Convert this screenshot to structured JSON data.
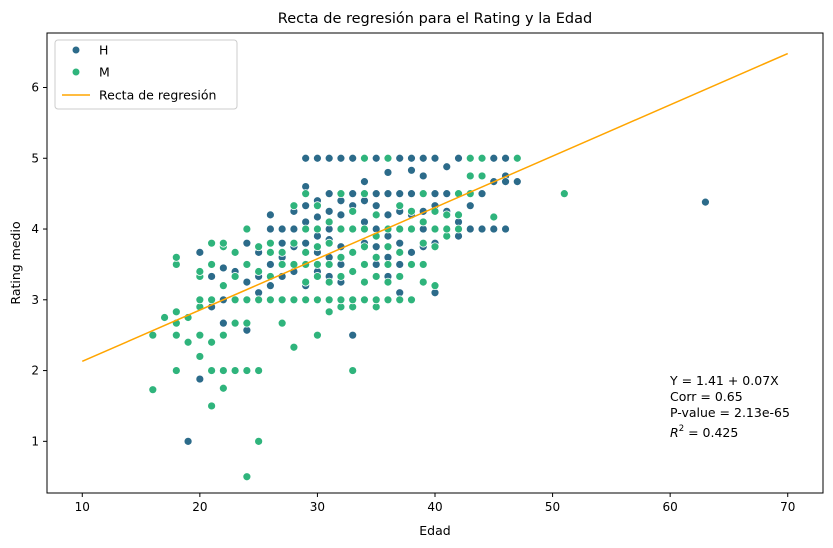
{
  "chart_data": {
    "type": "scatter",
    "title": "Recta de regresión para el Rating y la Edad",
    "xlabel": "Edad",
    "ylabel": "Rating medio",
    "xlim": [
      7,
      73
    ],
    "ylim": [
      0.27,
      6.77
    ],
    "xticks": [
      10,
      20,
      30,
      40,
      50,
      60,
      70
    ],
    "yticks": [
      1,
      2,
      3,
      4,
      5,
      6
    ],
    "grid": false,
    "legend_position": "top-left",
    "series": [
      {
        "name": "H",
        "color": "#2c6b8a",
        "points": [
          [
            19,
            1.0
          ],
          [
            20,
            1.88
          ],
          [
            20,
            3.67
          ],
          [
            21,
            2.9
          ],
          [
            21,
            3.33
          ],
          [
            21,
            3.5
          ],
          [
            22,
            3.0
          ],
          [
            22,
            3.45
          ],
          [
            22,
            2.67
          ],
          [
            23,
            3.0
          ],
          [
            23,
            3.4
          ],
          [
            23,
            3.67
          ],
          [
            24,
            3.25
          ],
          [
            24,
            3.5
          ],
          [
            24,
            3.8
          ],
          [
            24,
            2.0
          ],
          [
            24,
            2.57
          ],
          [
            25,
            3.33
          ],
          [
            25,
            3.67
          ],
          [
            25,
            3.1
          ],
          [
            26,
            3.5
          ],
          [
            26,
            4.0
          ],
          [
            26,
            4.2
          ],
          [
            26,
            3.2
          ],
          [
            27,
            3.33
          ],
          [
            27,
            3.6
          ],
          [
            27,
            3.8
          ],
          [
            27,
            4.0
          ],
          [
            28,
            3.0
          ],
          [
            28,
            3.4
          ],
          [
            28,
            3.75
          ],
          [
            28,
            4.0
          ],
          [
            28,
            4.25
          ],
          [
            29,
            3.5
          ],
          [
            29,
            3.8
          ],
          [
            29,
            4.1
          ],
          [
            29,
            4.33
          ],
          [
            29,
            4.6
          ],
          [
            29,
            5.0
          ],
          [
            29,
            3.2
          ],
          [
            30,
            3.0
          ],
          [
            30,
            3.4
          ],
          [
            30,
            3.67
          ],
          [
            30,
            3.9
          ],
          [
            30,
            4.17
          ],
          [
            30,
            4.4
          ],
          [
            30,
            5.0
          ],
          [
            31,
            3.33
          ],
          [
            31,
            3.6
          ],
          [
            31,
            3.85
          ],
          [
            31,
            4.0
          ],
          [
            31,
            4.25
          ],
          [
            31,
            4.5
          ],
          [
            31,
            5.0
          ],
          [
            32,
            3.5
          ],
          [
            32,
            3.75
          ],
          [
            32,
            4.0
          ],
          [
            32,
            4.2
          ],
          [
            32,
            4.4
          ],
          [
            32,
            5.0
          ],
          [
            32,
            3.25
          ],
          [
            33,
            3.4
          ],
          [
            33,
            3.67
          ],
          [
            33,
            4.0
          ],
          [
            33,
            4.33
          ],
          [
            33,
            4.5
          ],
          [
            33,
            5.0
          ],
          [
            33,
            2.5
          ],
          [
            34,
            3.5
          ],
          [
            34,
            3.8
          ],
          [
            34,
            4.1
          ],
          [
            34,
            4.4
          ],
          [
            34,
            4.67
          ],
          [
            35,
            3.5
          ],
          [
            35,
            3.75
          ],
          [
            35,
            4.0
          ],
          [
            35,
            4.33
          ],
          [
            35,
            4.5
          ],
          [
            35,
            5.0
          ],
          [
            36,
            3.6
          ],
          [
            36,
            3.9
          ],
          [
            36,
            4.2
          ],
          [
            36,
            4.5
          ],
          [
            36,
            4.8
          ],
          [
            36,
            3.33
          ],
          [
            37,
            3.5
          ],
          [
            37,
            3.8
          ],
          [
            37,
            4.0
          ],
          [
            37,
            4.25
          ],
          [
            37,
            4.5
          ],
          [
            37,
            5.0
          ],
          [
            37,
            3.1
          ],
          [
            38,
            3.67
          ],
          [
            38,
            4.0
          ],
          [
            38,
            4.2
          ],
          [
            38,
            4.5
          ],
          [
            38,
            4.83
          ],
          [
            38,
            5.0
          ],
          [
            39,
            3.75
          ],
          [
            39,
            4.0
          ],
          [
            39,
            4.25
          ],
          [
            39,
            4.5
          ],
          [
            39,
            4.75
          ],
          [
            39,
            5.0
          ],
          [
            40,
            3.1
          ],
          [
            40,
            3.8
          ],
          [
            40,
            4.0
          ],
          [
            40,
            4.33
          ],
          [
            40,
            4.5
          ],
          [
            40,
            5.0
          ],
          [
            41,
            4.0
          ],
          [
            41,
            4.25
          ],
          [
            41,
            4.5
          ],
          [
            41,
            4.88
          ],
          [
            42,
            3.9
          ],
          [
            42,
            4.1
          ],
          [
            42,
            4.5
          ],
          [
            42,
            5.0
          ],
          [
            43,
            4.0
          ],
          [
            43,
            4.33
          ],
          [
            43,
            5.0
          ],
          [
            44,
            4.0
          ],
          [
            44,
            4.5
          ],
          [
            45,
            4.0
          ],
          [
            45,
            4.67
          ],
          [
            45,
            5.0
          ],
          [
            46,
            4.0
          ],
          [
            46,
            4.75
          ],
          [
            46,
            5.0
          ],
          [
            46,
            4.67
          ],
          [
            47,
            4.67
          ],
          [
            63,
            4.38
          ]
        ]
      },
      {
        "name": "M",
        "color": "#2fb47c",
        "points": [
          [
            16,
            1.73
          ],
          [
            16,
            2.5
          ],
          [
            17,
            2.75
          ],
          [
            18,
            2.0
          ],
          [
            18,
            2.5
          ],
          [
            18,
            2.67
          ],
          [
            18,
            2.83
          ],
          [
            18,
            3.5
          ],
          [
            18,
            3.6
          ],
          [
            19,
            2.4
          ],
          [
            19,
            2.75
          ],
          [
            20,
            2.2
          ],
          [
            20,
            2.5
          ],
          [
            20,
            2.9
          ],
          [
            20,
            3.0
          ],
          [
            20,
            3.33
          ],
          [
            20,
            3.4
          ],
          [
            21,
            1.5
          ],
          [
            21,
            2.0
          ],
          [
            21,
            2.4
          ],
          [
            21,
            3.0
          ],
          [
            21,
            3.5
          ],
          [
            21,
            3.8
          ],
          [
            22,
            1.75
          ],
          [
            22,
            2.0
          ],
          [
            22,
            2.5
          ],
          [
            22,
            3.2
          ],
          [
            22,
            3.75
          ],
          [
            22,
            3.8
          ],
          [
            23,
            2.0
          ],
          [
            23,
            2.67
          ],
          [
            23,
            3.0
          ],
          [
            23,
            3.33
          ],
          [
            23,
            3.67
          ],
          [
            24,
            0.5
          ],
          [
            24,
            2.0
          ],
          [
            24,
            2.67
          ],
          [
            24,
            3.0
          ],
          [
            24,
            3.5
          ],
          [
            24,
            4.0
          ],
          [
            25,
            1.0
          ],
          [
            25,
            2.0
          ],
          [
            25,
            3.0
          ],
          [
            25,
            3.4
          ],
          [
            25,
            3.75
          ],
          [
            26,
            3.0
          ],
          [
            26,
            3.33
          ],
          [
            26,
            3.67
          ],
          [
            26,
            3.8
          ],
          [
            27,
            2.67
          ],
          [
            27,
            3.0
          ],
          [
            27,
            3.5
          ],
          [
            27,
            3.67
          ],
          [
            28,
            2.33
          ],
          [
            28,
            3.0
          ],
          [
            28,
            3.5
          ],
          [
            28,
            3.8
          ],
          [
            28,
            4.33
          ],
          [
            29,
            3.0
          ],
          [
            29,
            3.25
          ],
          [
            29,
            3.5
          ],
          [
            29,
            3.67
          ],
          [
            29,
            4.0
          ],
          [
            29,
            4.5
          ],
          [
            30,
            2.5
          ],
          [
            30,
            3.0
          ],
          [
            30,
            3.33
          ],
          [
            30,
            3.5
          ],
          [
            30,
            3.75
          ],
          [
            30,
            4.0
          ],
          [
            30,
            4.33
          ],
          [
            31,
            2.83
          ],
          [
            31,
            3.0
          ],
          [
            31,
            3.25
          ],
          [
            31,
            3.5
          ],
          [
            31,
            3.8
          ],
          [
            31,
            4.1
          ],
          [
            32,
            2.9
          ],
          [
            32,
            3.0
          ],
          [
            32,
            3.33
          ],
          [
            32,
            3.6
          ],
          [
            32,
            4.0
          ],
          [
            32,
            4.5
          ],
          [
            33,
            2.0
          ],
          [
            33,
            2.9
          ],
          [
            33,
            3.0
          ],
          [
            33,
            3.4
          ],
          [
            33,
            3.67
          ],
          [
            33,
            4.0
          ],
          [
            33,
            4.25
          ],
          [
            34,
            3.0
          ],
          [
            34,
            3.25
          ],
          [
            34,
            3.5
          ],
          [
            34,
            3.75
          ],
          [
            34,
            4.0
          ],
          [
            34,
            4.5
          ],
          [
            34,
            5.0
          ],
          [
            35,
            2.9
          ],
          [
            35,
            3.0
          ],
          [
            35,
            3.33
          ],
          [
            35,
            3.6
          ],
          [
            35,
            3.9
          ],
          [
            35,
            4.2
          ],
          [
            36,
            3.0
          ],
          [
            36,
            3.25
          ],
          [
            36,
            3.5
          ],
          [
            36,
            3.75
          ],
          [
            36,
            4.0
          ],
          [
            36,
            5.0
          ],
          [
            37,
            3.0
          ],
          [
            37,
            3.33
          ],
          [
            37,
            3.67
          ],
          [
            37,
            4.0
          ],
          [
            37,
            4.33
          ],
          [
            38,
            3.0
          ],
          [
            38,
            3.5
          ],
          [
            38,
            4.0
          ],
          [
            38,
            4.25
          ],
          [
            39,
            3.25
          ],
          [
            39,
            3.5
          ],
          [
            39,
            3.8
          ],
          [
            39,
            4.1
          ],
          [
            39,
            4.5
          ],
          [
            40,
            3.2
          ],
          [
            40,
            3.75
          ],
          [
            40,
            4.0
          ],
          [
            40,
            4.25
          ],
          [
            41,
            3.9
          ],
          [
            41,
            4.0
          ],
          [
            41,
            4.2
          ],
          [
            42,
            4.0
          ],
          [
            42,
            4.2
          ],
          [
            42,
            4.5
          ],
          [
            43,
            4.5
          ],
          [
            43,
            4.75
          ],
          [
            43,
            5.0
          ],
          [
            44,
            4.75
          ],
          [
            44,
            5.0
          ],
          [
            45,
            4.17
          ],
          [
            47,
            5.0
          ],
          [
            51,
            4.5
          ]
        ]
      },
      {
        "name": "Recta de regresión",
        "type": "line",
        "color": "#ffa500",
        "points": [
          [
            10,
            2.13
          ],
          [
            70,
            6.48
          ]
        ]
      }
    ],
    "annotation": {
      "line1": "Y = 1.41 + 0.07X",
      "line2": "Corr = 0.65",
      "line3": "P-value = 2.13e-65",
      "r2_symbol": "R",
      "r2_exponent": "2",
      "r2_rest": " = 0.425"
    }
  }
}
